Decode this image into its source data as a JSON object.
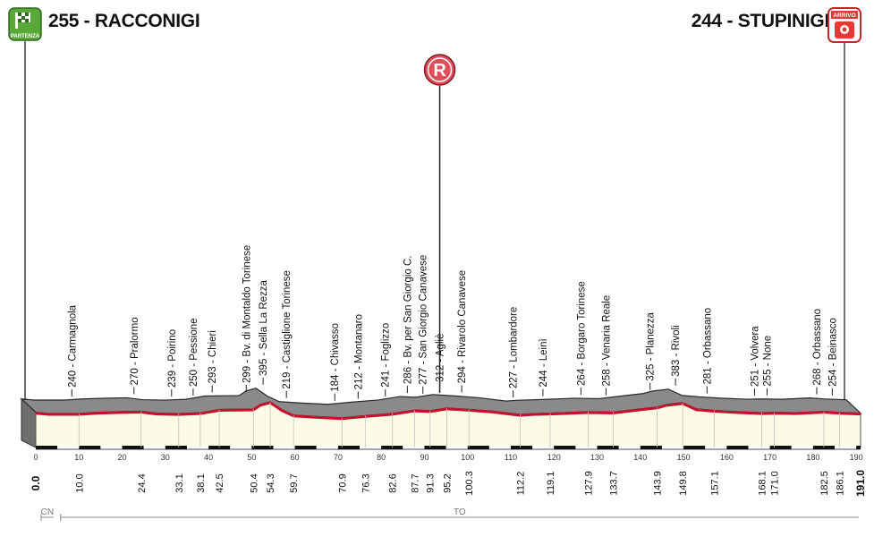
{
  "start": {
    "altitude": "255",
    "name": "RACCONIGI",
    "badge": "PARTENZA"
  },
  "finish": {
    "altitude": "244",
    "name": "STUPINIGI",
    "badge": "ARRIVO"
  },
  "refuel": {
    "letter": "R",
    "km": 95.2
  },
  "provinces": [
    {
      "label": "CN",
      "from": 0,
      "to": 4.5
    },
    {
      "label": "TO",
      "from": 4.5,
      "to": 191
    }
  ],
  "chart_data": {
    "type": "area",
    "title": "",
    "xlabel": "",
    "ylabel": "",
    "xlim": [
      0,
      191
    ],
    "x_ticks": [
      0,
      10,
      20,
      30,
      40,
      50,
      60,
      70,
      80,
      90,
      100,
      110,
      120,
      130,
      140,
      150,
      160,
      170,
      180,
      190
    ],
    "x": [
      0,
      3,
      10,
      14,
      20,
      24.4,
      28,
      33.1,
      38.1,
      42.5,
      47,
      50.4,
      52,
      54.3,
      57,
      59.7,
      65,
      70.9,
      76.3,
      82.6,
      87.7,
      91.3,
      95.2,
      100.3,
      106,
      112.2,
      115,
      119.1,
      127.9,
      133.7,
      140,
      143.9,
      146,
      149.8,
      153,
      157.1,
      162,
      168.1,
      171.0,
      176,
      182.5,
      186.1,
      191.0
    ],
    "y": [
      255,
      240,
      240,
      255,
      265,
      270,
      245,
      239,
      250,
      293,
      296,
      299,
      360,
      395,
      290,
      219,
      200,
      184,
      212,
      241,
      286,
      277,
      312,
      294,
      270,
      227,
      238,
      244,
      264,
      258,
      300,
      325,
      358,
      383,
      300,
      281,
      265,
      251,
      255,
      250,
      268,
      254,
      244
    ],
    "distance_labels": [
      "0.0",
      "10.0",
      "24.4",
      "33.1",
      "38.1",
      "42.5",
      "50.4",
      "54.3",
      "59.7",
      "70.9",
      "76.3",
      "82.6",
      "87.7",
      "91.3",
      "95.2",
      "100.3",
      "112.2",
      "119.1",
      "127.9",
      "133.7",
      "143.9",
      "149.8",
      "157.1",
      "168.1",
      "171.0",
      "182.5",
      "186.1",
      "191.0"
    ],
    "waypoints": [
      {
        "km": 10.0,
        "label": "240 - Carmagnola"
      },
      {
        "km": 24.4,
        "label": "270 - Pralormo"
      },
      {
        "km": 33.1,
        "label": "239 - Poirino"
      },
      {
        "km": 38.1,
        "label": "250 - Pessione"
      },
      {
        "km": 42.5,
        "label": "293 - Chieri"
      },
      {
        "km": 50.4,
        "label": "299 - Bv. di Montaldo Torinese"
      },
      {
        "km": 54.3,
        "label": "395 - Sella La Rezza"
      },
      {
        "km": 59.7,
        "label": "219 - Castiglione Torinese"
      },
      {
        "km": 70.9,
        "label": "184 - Chivasso"
      },
      {
        "km": 76.3,
        "label": "212 - Montanaro"
      },
      {
        "km": 82.6,
        "label": "241 - Foglizzo"
      },
      {
        "km": 87.7,
        "label": "286 - Bv. per San Giorgio C."
      },
      {
        "km": 91.3,
        "label": "277 - San Giorgio Canavese"
      },
      {
        "km": 95.2,
        "label": "312 - Agliè"
      },
      {
        "km": 100.3,
        "label": "294 - Rivarolo Canavese"
      },
      {
        "km": 112.2,
        "label": "227 - Lombardore"
      },
      {
        "km": 119.1,
        "label": "244 - Leinì"
      },
      {
        "km": 127.9,
        "label": "264 - Borgaro Torinese"
      },
      {
        "km": 133.7,
        "label": "258 - Venaria Reale"
      },
      {
        "km": 143.9,
        "label": "325 - Planezza"
      },
      {
        "km": 149.8,
        "label": "383 - Rivoli"
      },
      {
        "km": 157.1,
        "label": "281 - Orbassano"
      },
      {
        "km": 168.1,
        "label": "251 - Volvera"
      },
      {
        "km": 171.0,
        "label": "255 - None"
      },
      {
        "km": 182.5,
        "label": "268 - Orbassano"
      },
      {
        "km": 186.1,
        "label": "254 - Beinasco"
      }
    ],
    "colors": {
      "profile_top": "#8a8a8a",
      "profile_edge": "#2b2b2b",
      "road_red": "#c8102e",
      "face": "#fcfce6",
      "start_green": "#5aa83a",
      "finish_red": "#e53935"
    }
  }
}
